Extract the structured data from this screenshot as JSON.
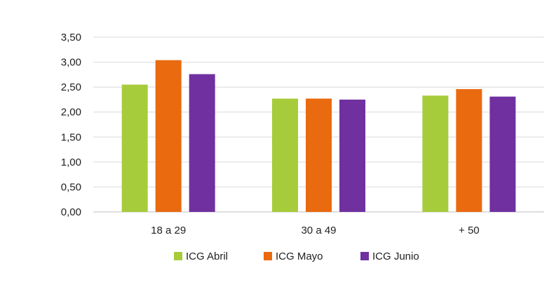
{
  "chart_data": {
    "type": "bar",
    "title": "",
    "xlabel": "",
    "ylabel": "",
    "categories": [
      "18 a 29",
      "30 a 49",
      "+ 50"
    ],
    "y_ticks": [
      "0,00",
      "0,50",
      "1,00",
      "1,50",
      "2,00",
      "2,50",
      "3,00",
      "3,50"
    ],
    "ylim": [
      0,
      3.5
    ],
    "grid": true,
    "legend_position": "bottom",
    "series": [
      {
        "name": "ICG Abril",
        "color": "#a7cc3b",
        "values": [
          2.55,
          2.27,
          2.33
        ]
      },
      {
        "name": "ICG Mayo",
        "color": "#ea6a10",
        "values": [
          3.04,
          2.27,
          2.46
        ]
      },
      {
        "name": "ICG Junio",
        "color": "#7030a0",
        "values": [
          2.76,
          2.25,
          2.31
        ]
      }
    ]
  }
}
